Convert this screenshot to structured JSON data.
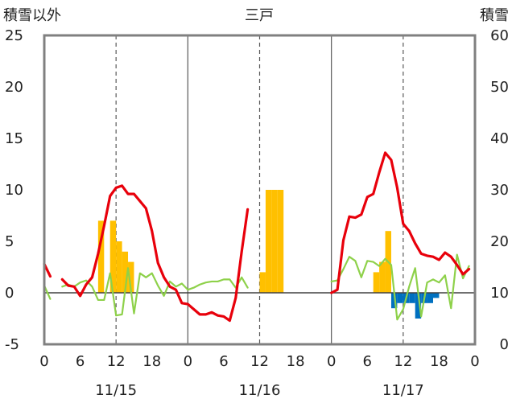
{
  "chart_data": {
    "type": "bar",
    "title": "三戸",
    "ylabel_left": "積雪以外",
    "ylabel_right": "積雪",
    "left_axis": {
      "min": -5,
      "max": 25,
      "ticks": [
        -5,
        0,
        5,
        10,
        15,
        20,
        25
      ]
    },
    "right_axis": {
      "min": 0,
      "max": 60,
      "ticks": [
        0,
        10,
        20,
        30,
        40,
        50,
        60
      ]
    },
    "x_hours": {
      "min": 0,
      "max": 72,
      "tick_values": [
        0,
        6,
        12,
        18,
        24,
        30,
        36,
        42,
        48,
        54,
        60,
        66,
        72
      ],
      "tick_labels": [
        "0",
        "6",
        "12",
        "18",
        "0",
        "6",
        "12",
        "18",
        "0",
        "6",
        "12",
        "18",
        "0"
      ]
    },
    "day_labels": [
      {
        "hour": 12,
        "label": "11/15"
      },
      {
        "hour": 36,
        "label": "11/16"
      },
      {
        "hour": 60,
        "label": "11/17"
      }
    ],
    "grid": {
      "day_boundaries": [
        24,
        48
      ],
      "noon_lines": [
        12,
        36,
        60
      ]
    },
    "colors": {
      "temperature": "#e8000b",
      "precip": "#ffc000",
      "snowfall": "#0070c0",
      "wind": "#8ed14a",
      "snow_depth": "#7030a0",
      "frame": "#808080"
    },
    "series": [
      {
        "key": "precipitation",
        "kind": "bar",
        "axis": "left",
        "points": [
          [
            9,
            7
          ],
          [
            11,
            7
          ],
          [
            12,
            5
          ],
          [
            13,
            4
          ],
          [
            14,
            3
          ],
          [
            36,
            2
          ],
          [
            37,
            10
          ],
          [
            38,
            10
          ],
          [
            39,
            10
          ],
          [
            55,
            2
          ],
          [
            56,
            3
          ],
          [
            57,
            6
          ]
        ]
      },
      {
        "key": "snowfall",
        "kind": "bar",
        "axis": "left",
        "points": [
          [
            58,
            -1.5
          ],
          [
            59,
            -1
          ],
          [
            60,
            -1
          ],
          [
            61,
            -1
          ],
          [
            62,
            -2.5
          ],
          [
            63,
            -1
          ],
          [
            64,
            -1
          ],
          [
            65,
            -0.5
          ]
        ]
      },
      {
        "key": "temperature",
        "kind": "line",
        "axis": "left",
        "segments": [
          [
            [
              0,
              2.8
            ],
            [
              1,
              1.6
            ]
          ],
          [
            [
              3,
              1.3
            ],
            [
              4,
              0.7
            ],
            [
              5,
              0.6
            ],
            [
              6,
              -0.3
            ],
            [
              7,
              0.8
            ],
            [
              8,
              1.5
            ],
            [
              9,
              3.8
            ],
            [
              10,
              6.5
            ],
            [
              11,
              9.4
            ],
            [
              12,
              10.2
            ],
            [
              13,
              10.4
            ],
            [
              14,
              9.6
            ],
            [
              15,
              9.6
            ],
            [
              16,
              8.9
            ],
            [
              17,
              8.2
            ],
            [
              18,
              6
            ],
            [
              19,
              2.9
            ],
            [
              20,
              1.5
            ],
            [
              21,
              0.6
            ],
            [
              22,
              0.3
            ],
            [
              23,
              -1
            ],
            [
              24,
              -1.1
            ],
            [
              25,
              -1.6
            ],
            [
              26,
              -2.1
            ],
            [
              27,
              -2.1
            ],
            [
              28,
              -1.9
            ],
            [
              29,
              -2.2
            ],
            [
              30,
              -2.3
            ],
            [
              31,
              -2.7
            ],
            [
              32,
              -0.5
            ],
            [
              33,
              4
            ],
            [
              34,
              8.1
            ]
          ],
          [
            [
              48,
              0
            ],
            [
              49,
              0.3
            ],
            [
              50,
              5.1
            ],
            [
              51,
              7.4
            ],
            [
              52,
              7.3
            ],
            [
              53,
              7.6
            ],
            [
              54,
              9.3
            ],
            [
              55,
              9.6
            ],
            [
              56,
              11.7
            ],
            [
              57,
              13.6
            ],
            [
              58,
              12.9
            ],
            [
              59,
              10.2
            ],
            [
              60,
              6.7
            ],
            [
              61,
              6
            ],
            [
              62,
              4.8
            ],
            [
              63,
              3.8
            ],
            [
              64,
              3.6
            ],
            [
              65,
              3.5
            ],
            [
              66,
              3.2
            ],
            [
              67,
              3.9
            ],
            [
              68,
              3.5
            ],
            [
              69,
              2.7
            ],
            [
              70,
              1.8
            ],
            [
              71,
              2.3
            ]
          ]
        ]
      },
      {
        "key": "wind",
        "kind": "line",
        "axis": "left",
        "segments": [
          [
            [
              0,
              0.7
            ],
            [
              1,
              -0.6
            ]
          ],
          [
            [
              3,
              0.6
            ],
            [
              4,
              0.8
            ],
            [
              5,
              0.6
            ],
            [
              6,
              1
            ],
            [
              7,
              1.2
            ],
            [
              8,
              0.6
            ],
            [
              9,
              -0.7
            ],
            [
              10,
              -0.7
            ],
            [
              11,
              1.9
            ],
            [
              12,
              -2.2
            ],
            [
              13,
              -2.1
            ],
            [
              14,
              2.4
            ],
            [
              15,
              -2
            ],
            [
              16,
              1.9
            ],
            [
              17,
              1.5
            ],
            [
              18,
              1.9
            ],
            [
              19,
              0.7
            ],
            [
              20,
              -0.3
            ],
            [
              21,
              1.1
            ],
            [
              22,
              0.6
            ],
            [
              23,
              0.9
            ],
            [
              24,
              0.3
            ],
            [
              25,
              0.5
            ],
            [
              26,
              0.8
            ],
            [
              27,
              1
            ],
            [
              28,
              1.1
            ],
            [
              29,
              1.1
            ],
            [
              30,
              1.3
            ],
            [
              31,
              1.3
            ],
            [
              32,
              0.5
            ],
            [
              33,
              1.5
            ],
            [
              34,
              0.5
            ]
          ],
          [
            [
              48,
              1.1
            ],
            [
              49,
              1.2
            ],
            [
              50,
              2.3
            ],
            [
              51,
              3.5
            ],
            [
              52,
              3.1
            ],
            [
              53,
              1.5
            ],
            [
              54,
              3.1
            ],
            [
              55,
              3
            ],
            [
              56,
              2.6
            ],
            [
              57,
              3.3
            ],
            [
              58,
              2.7
            ],
            [
              59,
              -2.6
            ],
            [
              60,
              -1.6
            ],
            [
              61,
              0.6
            ],
            [
              62,
              2.4
            ],
            [
              63,
              -2.3
            ],
            [
              64,
              1
            ],
            [
              65,
              1.3
            ],
            [
              66,
              1
            ],
            [
              67,
              1.7
            ],
            [
              68,
              -1.5
            ],
            [
              69,
              3.7
            ],
            [
              70,
              1.4
            ],
            [
              71,
              2.6
            ]
          ]
        ]
      },
      {
        "key": "snow_depth",
        "kind": "line",
        "axis": "right",
        "segments": [
          [
            [
              0,
              0
            ],
            [
              34,
              0
            ]
          ],
          [
            [
              48,
              0
            ],
            [
              71,
              0
            ]
          ]
        ]
      }
    ]
  }
}
